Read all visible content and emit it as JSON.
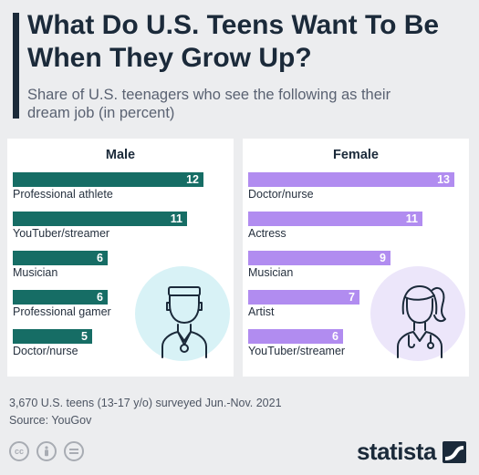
{
  "header": {
    "title": "What Do U.S. Teens Want To Be When They Grow Up?",
    "subtitle": "Share of U.S. teenagers who see the following as their dream job (in percent)"
  },
  "chart_data": [
    {
      "type": "bar",
      "title": "Male",
      "categories": [
        "Professional athlete",
        "YouTuber/streamer",
        "Musician",
        "Professional gamer",
        "Doctor/nurse"
      ],
      "values": [
        12,
        11,
        6,
        6,
        5
      ],
      "color": "#166d65"
    },
    {
      "type": "bar",
      "title": "Female",
      "categories": [
        "Doctor/nurse",
        "Actress",
        "Musician",
        "Artist",
        "YouTuber/streamer"
      ],
      "values": [
        13,
        11,
        9,
        7,
        6
      ],
      "color": "#b18cf0"
    }
  ],
  "footer": {
    "note": "3,670 U.S. teens (13-17 y/o) surveyed Jun.-Nov. 2021",
    "source": "Source: YouGov",
    "license_icons": [
      "cc-icon",
      "attribution-icon",
      "no-derivatives-icon"
    ],
    "brand": "statista"
  }
}
